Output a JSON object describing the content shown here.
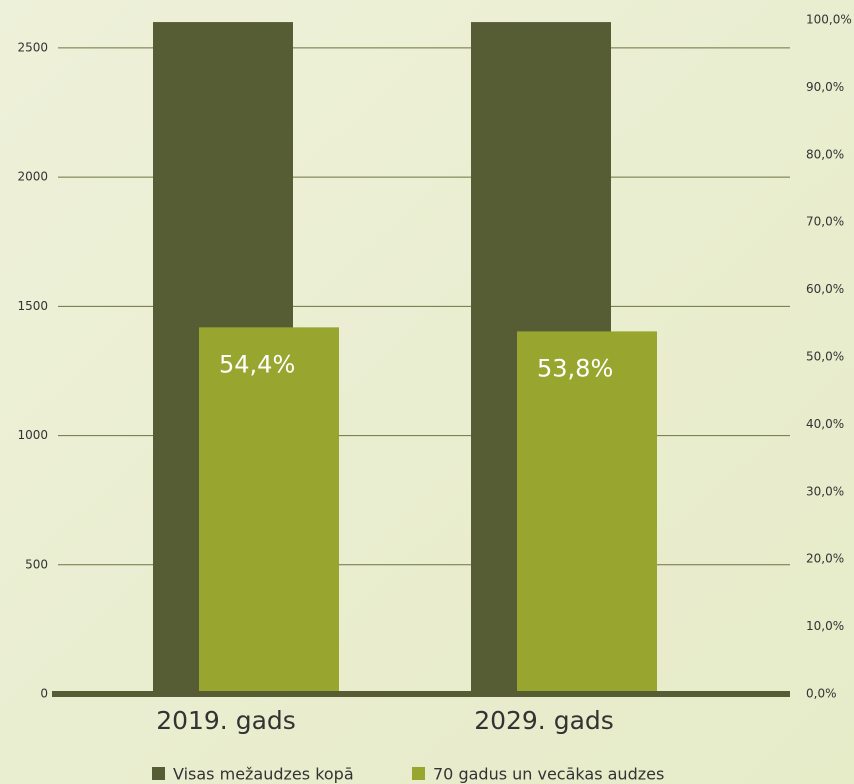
{
  "chart_data": {
    "type": "bar",
    "categories": [
      "2019. gads",
      "2029. gads"
    ],
    "series": [
      {
        "name": "Visas mežaudzes kopā",
        "color": "#565c33",
        "values": [
          2600,
          2600
        ]
      },
      {
        "name": "70 gadus un vecākas audzes",
        "color": "#98a62f",
        "axis": "y2",
        "values": [
          54.4,
          53.8
        ],
        "value_labels": [
          "54,4%",
          "53,8%"
        ]
      }
    ],
    "ylim": [
      0,
      2608
    ],
    "yticks": [
      0,
      500,
      1000,
      1500,
      2000,
      2500
    ],
    "y2lim": [
      0,
      100
    ],
    "y2ticks": [
      {
        "value": 0,
        "label": "0,0%"
      },
      {
        "value": 10,
        "label": "10,0%"
      },
      {
        "value": 20,
        "label": "20,0%"
      },
      {
        "value": 30,
        "label": "30,0%"
      },
      {
        "value": 40,
        "label": "40,0%"
      },
      {
        "value": 50,
        "label": "50,0%"
      },
      {
        "value": 60,
        "label": "60,0%"
      },
      {
        "value": 70,
        "label": "70,0%"
      },
      {
        "value": 80,
        "label": "80,0%"
      },
      {
        "value": 90,
        "label": "90,0%"
      },
      {
        "value": 100,
        "label": "100,0%"
      }
    ],
    "grid": true
  }
}
